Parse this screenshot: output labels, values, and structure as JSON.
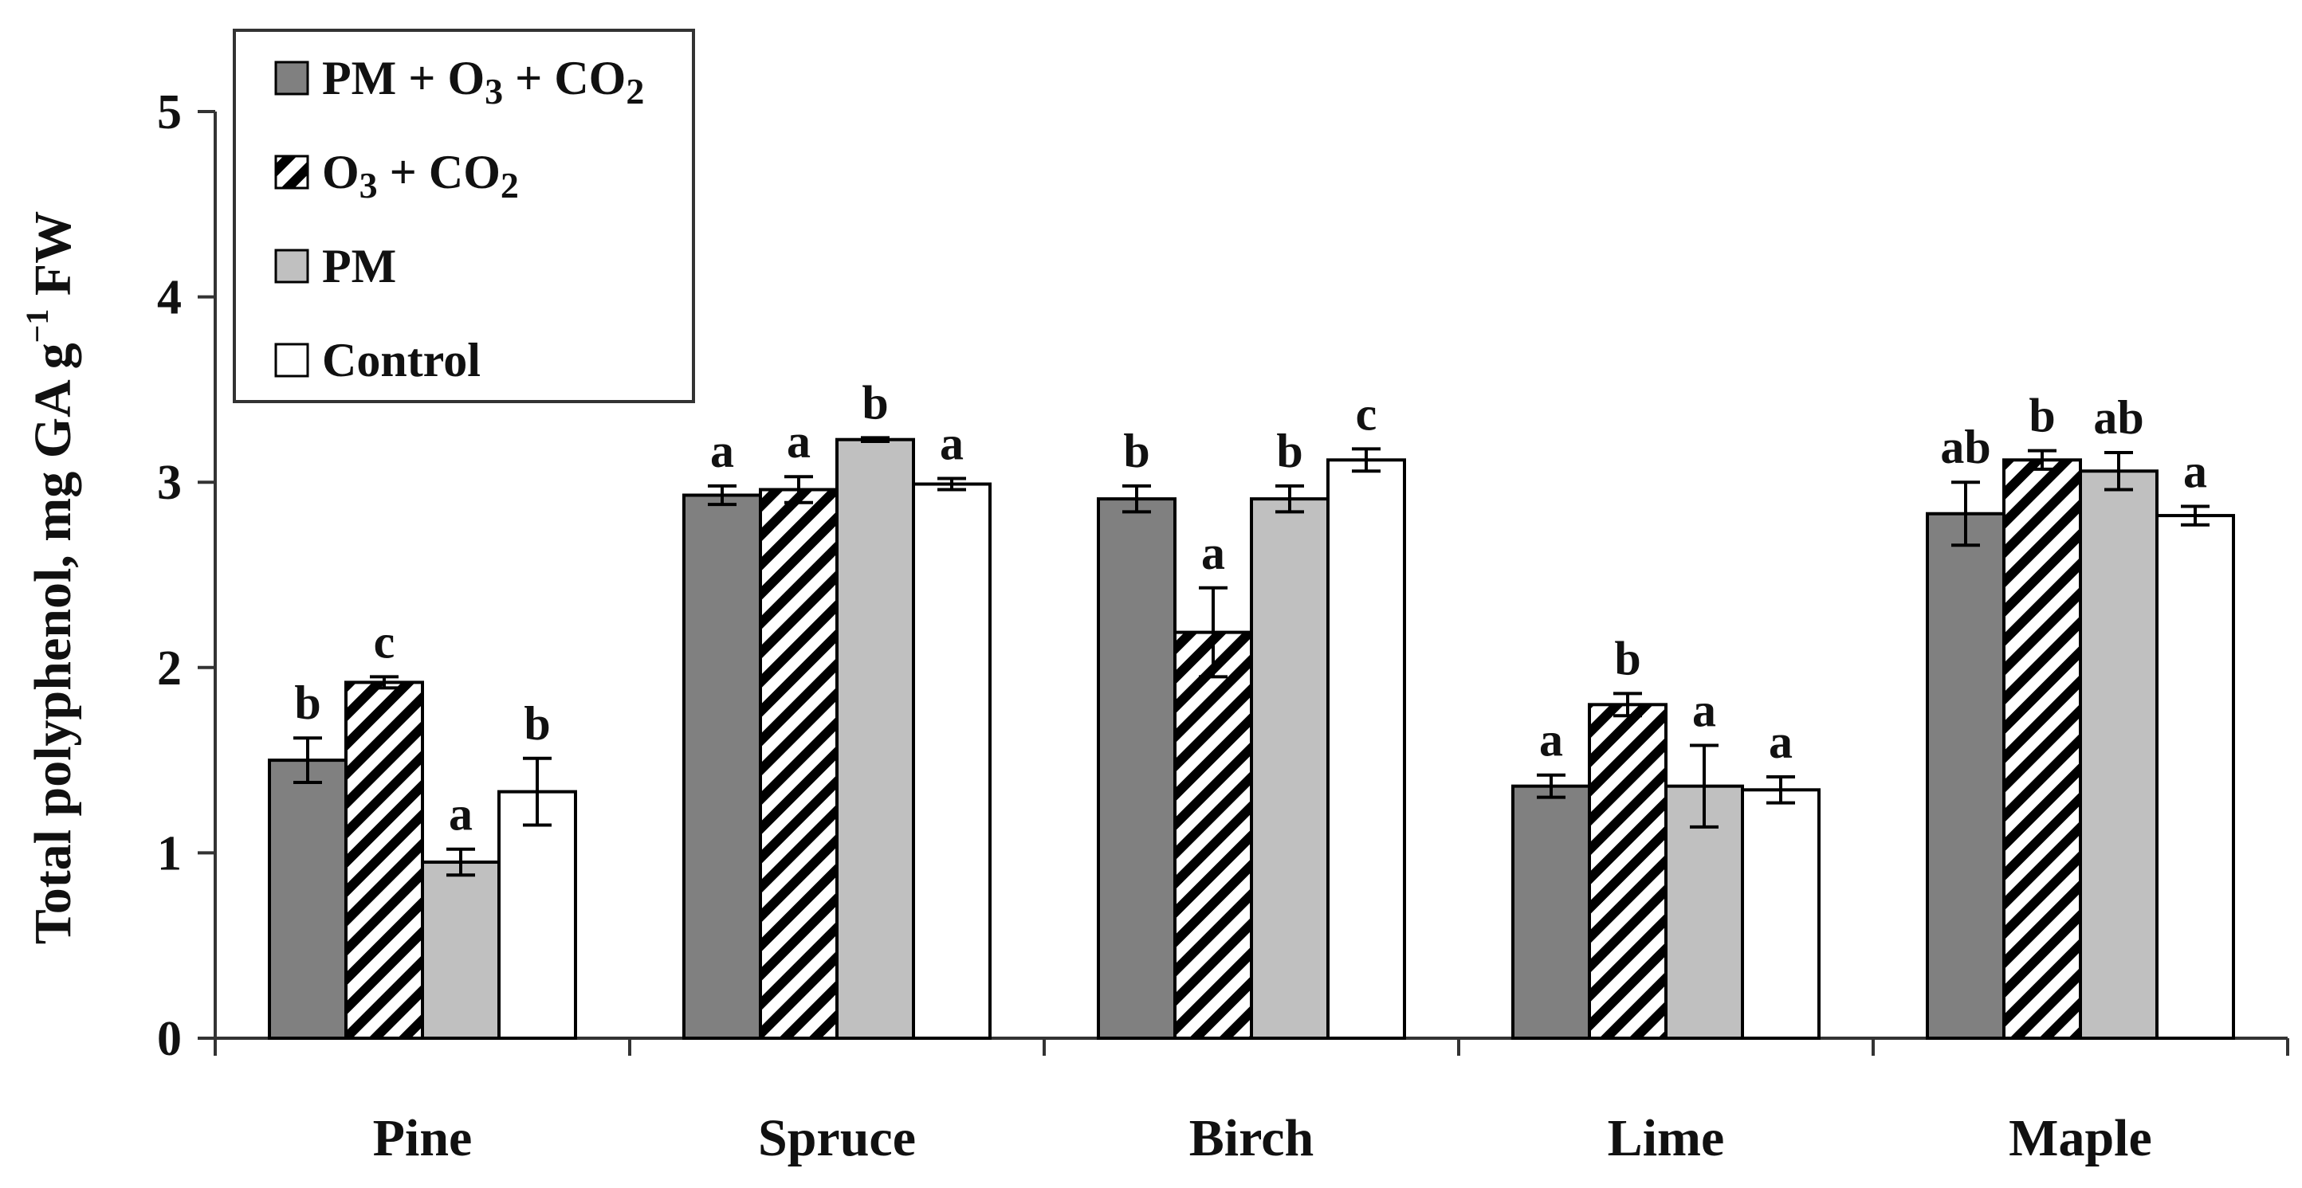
{
  "chart_data": {
    "type": "bar",
    "title": "",
    "xlabel": "",
    "ylabel": {
      "main": "Total polyphenol, mg GA g",
      "superscript": "−1",
      "suffix": " FW"
    },
    "ylim": [
      0,
      5
    ],
    "yticks": [
      "0",
      "1",
      "2",
      "3",
      "4",
      "5"
    ],
    "categories": [
      "Pine",
      "Spruce",
      "Birch",
      "Lime",
      "Maple"
    ],
    "legend_position": "top-left",
    "series": [
      {
        "name": "PM + O3 + CO2",
        "legend_parts": [
          {
            "t": "PM + O",
            "s": ""
          },
          {
            "t": "3",
            "s": "sub"
          },
          {
            "t": " + CO",
            "s": ""
          },
          {
            "t": "2",
            "s": "sub"
          }
        ],
        "pattern": "solid",
        "color": "#808080",
        "values": [
          1.5,
          2.93,
          2.91,
          1.36,
          2.83
        ],
        "errors": [
          0.12,
          0.05,
          0.07,
          0.06,
          0.17
        ],
        "letters": [
          "b",
          "a",
          "b",
          "a",
          "ab"
        ]
      },
      {
        "name": "O3 + CO2",
        "legend_parts": [
          {
            "t": "O",
            "s": ""
          },
          {
            "t": "3",
            "s": "sub"
          },
          {
            "t": " + CO",
            "s": ""
          },
          {
            "t": "2",
            "s": "sub"
          }
        ],
        "pattern": "hatched",
        "color": "#000000",
        "values": [
          1.92,
          2.96,
          2.19,
          1.8,
          3.12
        ],
        "errors": [
          0.03,
          0.07,
          0.24,
          0.06,
          0.05
        ],
        "letters": [
          "c",
          "a",
          "a",
          "b",
          "b"
        ]
      },
      {
        "name": "PM",
        "legend_parts": [
          {
            "t": "PM",
            "s": ""
          }
        ],
        "pattern": "solid",
        "color": "#c0c0c0",
        "values": [
          0.95,
          3.23,
          2.91,
          1.36,
          3.06
        ],
        "errors": [
          0.07,
          0.01,
          0.07,
          0.22,
          0.1
        ],
        "letters": [
          "a",
          "b",
          "b",
          "a",
          "ab"
        ]
      },
      {
        "name": "Control",
        "legend_parts": [
          {
            "t": "Control",
            "s": ""
          }
        ],
        "pattern": "solid",
        "color": "#ffffff",
        "values": [
          1.33,
          2.99,
          3.12,
          1.34,
          2.82
        ],
        "errors": [
          0.18,
          0.03,
          0.06,
          0.07,
          0.05
        ],
        "letters": [
          "b",
          "a",
          "c",
          "a",
          "a"
        ]
      }
    ]
  }
}
